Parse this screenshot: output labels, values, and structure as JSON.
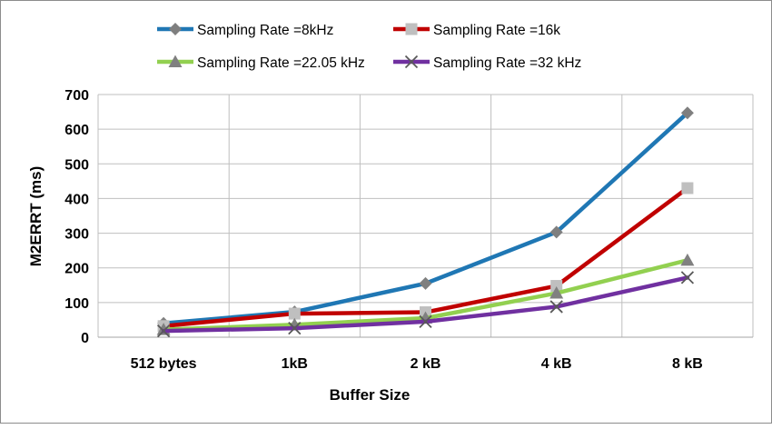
{
  "chart_data": {
    "type": "line",
    "categories": [
      "512 bytes",
      "1kB",
      "2 kB",
      "4 kB",
      "8 kB"
    ],
    "xlabel": "Buffer Size",
    "ylabel": "M2ERRT (ms)",
    "ylim": [
      0,
      700
    ],
    "yticks": [
      0,
      100,
      200,
      300,
      400,
      500,
      600,
      700
    ],
    "grid": true,
    "legend_position": "top",
    "series": [
      {
        "name": "Sampling Rate =8kHz",
        "values": [
          40,
          73,
          155,
          303,
          647
        ],
        "color": "#1f77b4",
        "marker": "diamond",
        "marker_color": "#7f7f7f"
      },
      {
        "name": "Sampling Rate =16k",
        "values": [
          32,
          68,
          72,
          148,
          430
        ],
        "color": "#c00000",
        "marker": "square",
        "marker_color": "#bfbfbf"
      },
      {
        "name": "Sampling Rate =22.05 kHz",
        "values": [
          22,
          36,
          55,
          127,
          222
        ],
        "color": "#92d050",
        "marker": "triangle",
        "marker_color": "#808080"
      },
      {
        "name": "Sampling Rate =32 kHz",
        "values": [
          18,
          26,
          45,
          88,
          172
        ],
        "color": "#7030a0",
        "marker": "x",
        "marker_color": "#595959"
      }
    ]
  }
}
